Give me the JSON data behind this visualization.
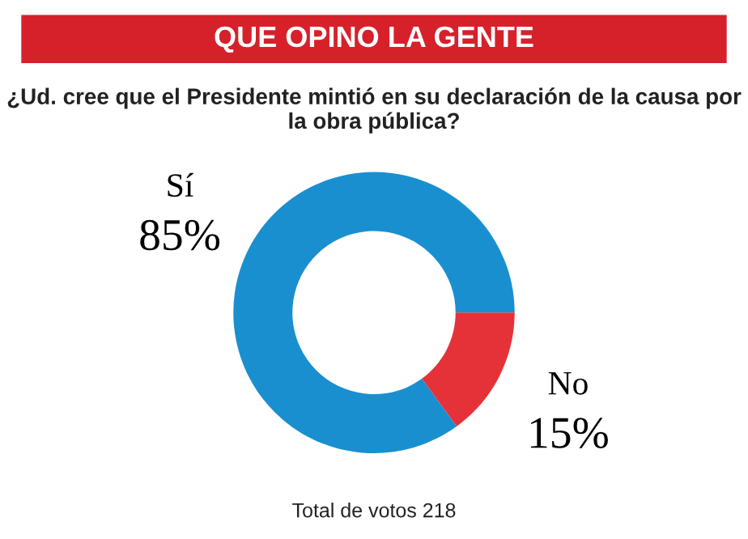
{
  "chart_data": {
    "type": "donut",
    "title": "QUE OPINO LA GENTE",
    "subtitle": "¿Ud. cree que el Presidente mintió en su declaración de la causa por la obra pública?",
    "categories": [
      "Sí",
      "No"
    ],
    "values": [
      85,
      15
    ],
    "colors": [
      "#1a8fd0",
      "#e53238"
    ],
    "value_labels": [
      "85%",
      "15%"
    ],
    "annotations": [
      "Total de votos 218"
    ],
    "legend": false
  }
}
